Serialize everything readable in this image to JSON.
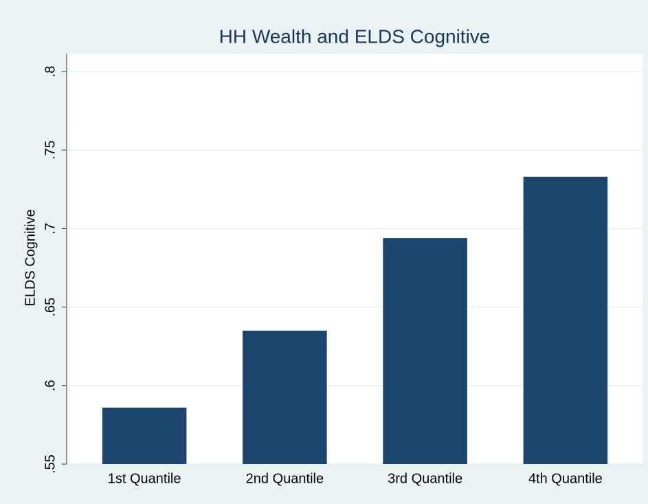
{
  "chart_data": {
    "type": "bar",
    "title": "HH Wealth and ELDS Cognitive",
    "y_label": "ELDS Cognitive",
    "categories": [
      "1st Quantile",
      "2nd Quantile",
      "3rd Quantile",
      "4th Quantile"
    ],
    "values": [
      0.586,
      0.635,
      0.694,
      0.733
    ],
    "color": "#1c466d",
    "ylim": [
      0.55,
      0.8
    ],
    "yticks": [
      {
        "value": 0.55,
        "label": ".55"
      },
      {
        "value": 0.6,
        "label": ".6"
      },
      {
        "value": 0.65,
        "label": ".65"
      },
      {
        "value": 0.7,
        "label": ".7"
      },
      {
        "value": 0.75,
        "label": ".75"
      },
      {
        "value": 0.8,
        "label": ".8"
      }
    ],
    "grid": true
  }
}
